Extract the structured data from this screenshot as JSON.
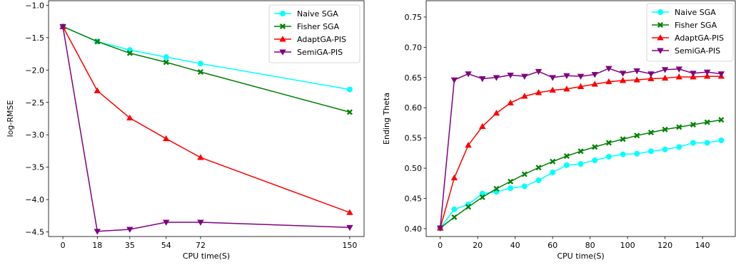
{
  "chart_data": [
    {
      "type": "line",
      "title": "",
      "xlabel": "CPU time(S)",
      "ylabel": "log-RMSE",
      "xlim": [
        -7.5,
        157.5
      ],
      "ylim": [
        -4.57,
        -0.93
      ],
      "xticks": [
        0,
        18,
        35,
        54,
        72,
        150
      ],
      "xtick_labels": [
        "0",
        "18",
        "35",
        "54",
        "72",
        "150"
      ],
      "yticks": [
        -4.5,
        -4.0,
        -3.5,
        -3.0,
        -2.5,
        -2.0,
        -1.5,
        -1.0
      ],
      "ytick_labels": [
        "−4.5",
        "−4.0",
        "−3.5",
        "−3.0",
        "−2.5",
        "−2.0",
        "−1.5",
        "−1.0"
      ],
      "legend_position": "top-right",
      "x": [
        0,
        18,
        35,
        54,
        72,
        150
      ],
      "series": [
        {
          "name": "Naive SGA",
          "color": "#00ffff",
          "marker": "circle",
          "values": [
            -1.33,
            -1.56,
            -1.69,
            -1.8,
            -1.9,
            -2.3
          ]
        },
        {
          "name": "Fisher SGA",
          "color": "#008000",
          "marker": "x",
          "values": [
            -1.33,
            -1.56,
            -1.74,
            -1.88,
            -2.03,
            -2.65
          ]
        },
        {
          "name": "AdaptGA-PIS",
          "color": "#ff0000",
          "marker": "triangle-up",
          "values": [
            -1.33,
            -2.32,
            -2.74,
            -3.06,
            -3.35,
            -4.2
          ]
        },
        {
          "name": "SemiGA-PIS",
          "color": "#800080",
          "marker": "triangle-down",
          "values": [
            -1.33,
            -4.49,
            -4.46,
            -4.35,
            -4.35,
            -4.43
          ]
        }
      ]
    },
    {
      "type": "line",
      "title": "",
      "xlabel": "CPU time(S)",
      "ylabel": "Ending Theta",
      "xlim": [
        -7.5,
        157.5
      ],
      "ylim": [
        0.387,
        0.777
      ],
      "xticks": [
        0,
        20,
        40,
        60,
        80,
        100,
        120,
        140
      ],
      "xtick_labels": [
        "0",
        "20",
        "40",
        "60",
        "80",
        "100",
        "120",
        "140"
      ],
      "yticks": [
        0.4,
        0.45,
        0.5,
        0.55,
        0.6,
        0.65,
        0.7,
        0.75
      ],
      "ytick_labels": [
        "0.40",
        "0.45",
        "0.50",
        "0.55",
        "0.60",
        "0.65",
        "0.70",
        "0.75"
      ],
      "legend_position": "top-right",
      "x": [
        0,
        7.5,
        15,
        22.5,
        30,
        37.5,
        45,
        52.5,
        60,
        67.5,
        75,
        82.5,
        90,
        97.5,
        105,
        112.5,
        120,
        127.5,
        135,
        142.5,
        150
      ],
      "series": [
        {
          "name": "Naive SGA",
          "color": "#00ffff",
          "marker": "circle",
          "values": [
            0.401,
            0.432,
            0.44,
            0.458,
            0.461,
            0.467,
            0.47,
            0.48,
            0.493,
            0.505,
            0.507,
            0.513,
            0.519,
            0.523,
            0.524,
            0.528,
            0.531,
            0.535,
            0.542,
            0.542,
            0.546
          ]
        },
        {
          "name": "Fisher SGA",
          "color": "#008000",
          "marker": "x",
          "values": [
            0.401,
            0.419,
            0.436,
            0.452,
            0.466,
            0.478,
            0.49,
            0.501,
            0.511,
            0.52,
            0.528,
            0.535,
            0.542,
            0.548,
            0.554,
            0.559,
            0.564,
            0.568,
            0.572,
            0.576,
            0.58
          ]
        },
        {
          "name": "AdaptGA-PIS",
          "color": "#ff0000",
          "marker": "triangle-up",
          "values": [
            0.401,
            0.484,
            0.538,
            0.569,
            0.591,
            0.608,
            0.619,
            0.625,
            0.629,
            0.631,
            0.635,
            0.639,
            0.643,
            0.645,
            0.646,
            0.648,
            0.649,
            0.651,
            0.651,
            0.652,
            0.652
          ]
        },
        {
          "name": "SemiGA-PIS",
          "color": "#800080",
          "marker": "triangle-down",
          "values": [
            0.401,
            0.646,
            0.656,
            0.648,
            0.65,
            0.654,
            0.652,
            0.66,
            0.65,
            0.653,
            0.652,
            0.655,
            0.665,
            0.657,
            0.661,
            0.656,
            0.663,
            0.664,
            0.657,
            0.659,
            0.656
          ]
        }
      ]
    }
  ]
}
